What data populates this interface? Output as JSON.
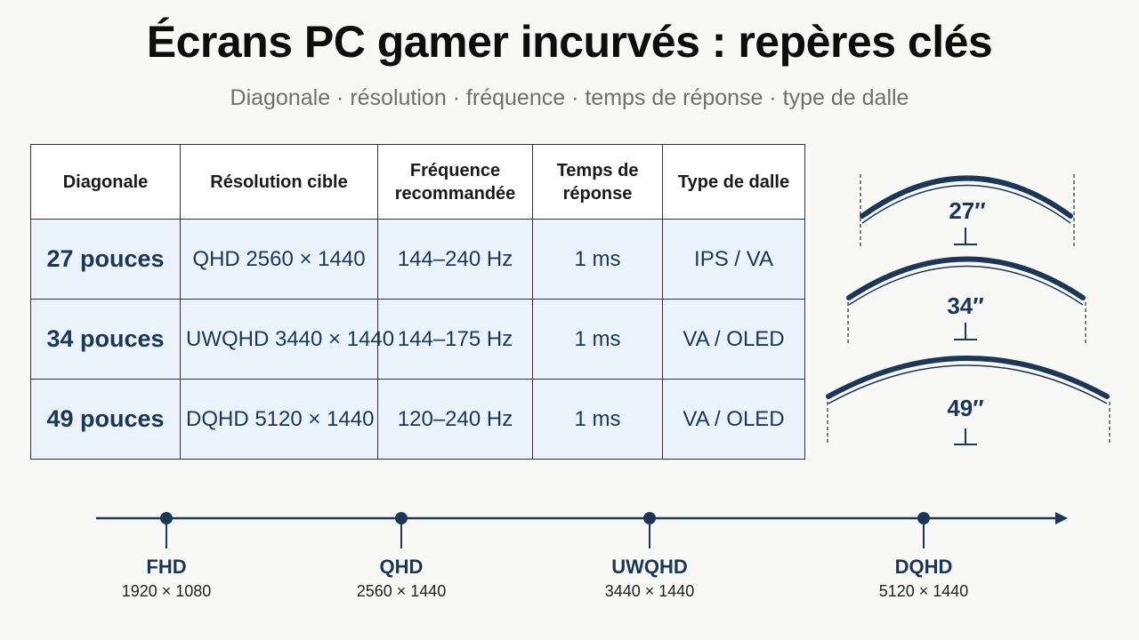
{
  "title": "Écrans PC gamer incurvés : repères clés",
  "subtitle": "Diagonale · résolution · fréquence · temps de réponse · type de dalle",
  "table": {
    "headers": {
      "diagonale": "Diagonale",
      "resolution": "Résolution cible",
      "frequence_l1": "Fréquence",
      "frequence_l2": "recommandée",
      "temps_l1": "Temps de",
      "temps_l2": "réponse",
      "dalle": "Type de dalle"
    },
    "rows": [
      {
        "diagonale": "27 pouces",
        "resolution": "QHD 2560 × 1440",
        "frequence": "144–240 Hz",
        "temps": "1 ms",
        "dalle": "IPS / VA"
      },
      {
        "diagonale": "34 pouces",
        "resolution": "UWQHD 3440 × 1440",
        "frequence": "144–175 Hz",
        "temps": "1 ms",
        "dalle": "VA / OLED"
      },
      {
        "diagonale": "49 pouces",
        "resolution": "DQHD 5120 × 1440",
        "frequence": "120–240 Hz",
        "temps": "1 ms",
        "dalle": "VA / OLED"
      }
    ]
  },
  "curves": [
    {
      "label": "27″"
    },
    {
      "label": "34″"
    },
    {
      "label": "49″"
    }
  ],
  "timeline": [
    {
      "name": "FHD",
      "resolution": "1920 × 1080"
    },
    {
      "name": "QHD",
      "resolution": "2560 × 1440"
    },
    {
      "name": "UWQHD",
      "resolution": "3440 × 1440"
    },
    {
      "name": "DQHD",
      "resolution": "5120 × 1440"
    }
  ],
  "colors": {
    "accent": "#1c3656",
    "row_fill": "#eaf2fb",
    "border": "#333333",
    "subtitle": "#6f6f6f"
  }
}
